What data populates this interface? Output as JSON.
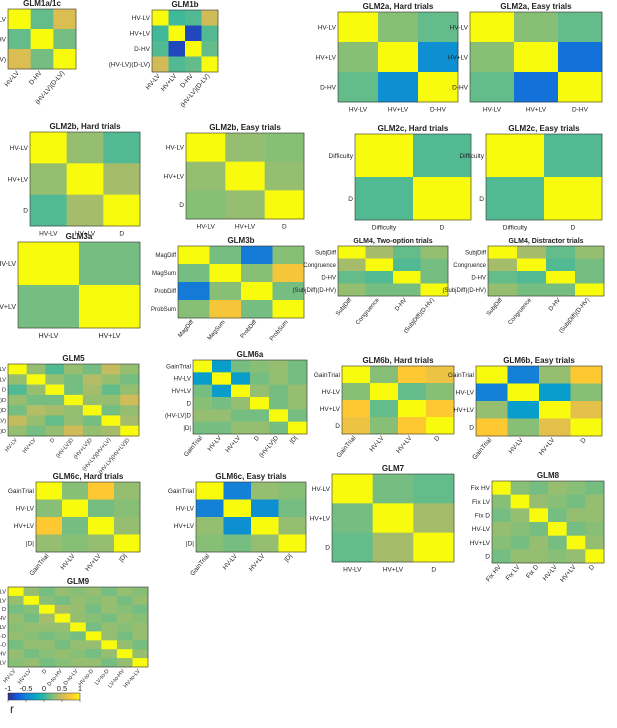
{
  "colormap": {
    "stops": [
      "#352a87",
      "#0f5cdd",
      "#1481d6",
      "#06a4ca",
      "#2eb7a4",
      "#87bf77",
      "#d1bb59",
      "#fec832",
      "#f9fb0e"
    ],
    "ticks": [
      -1,
      -0.5,
      0,
      0.5,
      1
    ],
    "tick_labels": [
      "-1",
      "-0.5",
      "0",
      "0.5",
      "1"
    ],
    "label": "r"
  },
  "chart_data": [
    {
      "type": "heatmap",
      "title": "GLM1a/1c",
      "y_labels": [
        "HV-LV",
        "D-HV",
        "(HV-LV)(D-LV)"
      ],
      "x_labels": [
        "HV-LV",
        "D-HV",
        "(HV-LV)(D-LV)"
      ],
      "values": [
        [
          1,
          0.15,
          0.55
        ],
        [
          0.15,
          1,
          0.2
        ],
        [
          0.55,
          0.2,
          1
        ]
      ]
    },
    {
      "type": "heatmap",
      "title": "GLM1b",
      "y_labels": [
        "HV-LV",
        "HV+LV",
        "D-HV",
        "(HV-LV)(D-LV)"
      ],
      "x_labels": [
        "HV-LV",
        "HV+LV",
        "D-HV",
        "(HV-LV)(D-LV)"
      ],
      "values": [
        [
          1,
          0.05,
          0.1,
          0.5
        ],
        [
          0.05,
          1,
          -0.85,
          0.1
        ],
        [
          0.1,
          -0.85,
          1,
          0.15
        ],
        [
          0.5,
          0.1,
          0.15,
          1
        ]
      ]
    },
    {
      "type": "heatmap",
      "title": "GLM2a, Hard trials",
      "y_labels": [
        "HV-LV",
        "HV+LV",
        "D-HV"
      ],
      "x_labels": [
        "HV-LV",
        "HV+LV",
        "D-HV"
      ],
      "values": [
        [
          1,
          0.25,
          0.15
        ],
        [
          0.25,
          1,
          -0.4
        ],
        [
          0.15,
          -0.4,
          1
        ]
      ]
    },
    {
      "type": "heatmap",
      "title": "GLM2a, Easy trials",
      "y_labels": [
        "HV-LV",
        "HV+LV",
        "D-HV"
      ],
      "x_labels": [
        "HV-LV",
        "HV+LV",
        "D-HV"
      ],
      "values": [
        [
          1,
          0.25,
          0.15
        ],
        [
          0.25,
          1,
          -0.6
        ],
        [
          0.15,
          -0.6,
          1
        ]
      ]
    },
    {
      "type": "heatmap",
      "title": "GLM2b, Hard trials",
      "y_labels": [
        "HV-LV",
        "HV+LV",
        "D"
      ],
      "x_labels": [
        "HV-LV",
        "HV+LV",
        "D"
      ],
      "values": [
        [
          1,
          0.3,
          0.1
        ],
        [
          0.3,
          1,
          0.35
        ],
        [
          0.1,
          0.35,
          1
        ]
      ]
    },
    {
      "type": "heatmap",
      "title": "GLM2b, Easy trials",
      "y_labels": [
        "HV-LV",
        "HV+LV",
        "D"
      ],
      "x_labels": [
        "HV-LV",
        "HV+LV",
        "D"
      ],
      "values": [
        [
          1,
          0.3,
          0.25
        ],
        [
          0.3,
          1,
          0.3
        ],
        [
          0.25,
          0.3,
          1
        ]
      ]
    },
    {
      "type": "heatmap",
      "title": "GLM2c, Hard trials",
      "y_labels": [
        "Difficulty",
        "D"
      ],
      "x_labels": [
        "Difficulty",
        "D"
      ],
      "values": [
        [
          1,
          0.1
        ],
        [
          0.1,
          1
        ]
      ]
    },
    {
      "type": "heatmap",
      "title": "GLM2c, Easy trials",
      "y_labels": [
        "Difficulty",
        "D"
      ],
      "x_labels": [
        "Difficulty",
        "D"
      ],
      "values": [
        [
          1,
          0.1
        ],
        [
          0.1,
          1
        ]
      ]
    },
    {
      "type": "heatmap",
      "title": "GLM3a",
      "y_labels": [
        "HV-LV",
        "HV+LV"
      ],
      "x_labels": [
        "HV-LV",
        "HV+LV"
      ],
      "values": [
        [
          1,
          0.2
        ],
        [
          0.2,
          1
        ]
      ]
    },
    {
      "type": "heatmap",
      "title": "GLM3b",
      "y_labels": [
        "MagDiff",
        "MagSum",
        "ProbDiff",
        "ProbSum"
      ],
      "x_labels": [
        "MagDiff",
        "MagSum",
        "ProbDiff",
        "ProbSum"
      ],
      "values": [
        [
          1,
          0.2,
          -0.55,
          0.25
        ],
        [
          0.2,
          1,
          0.25,
          0.7
        ],
        [
          -0.55,
          0.25,
          1,
          0.2
        ],
        [
          0.25,
          0.7,
          0.2,
          1
        ]
      ]
    },
    {
      "type": "heatmap",
      "title": "GLM4, Two-option trials",
      "y_labels": [
        "SubjDiff",
        "Congruence",
        "D-HV",
        "(SubjDiff)(D-HV)"
      ],
      "x_labels": [
        "SubjDiff",
        "Congruence",
        "D-HV",
        "(SubjDiff)(D-HV)"
      ],
      "values": [
        [
          1,
          0.35,
          0.15,
          0.3
        ],
        [
          0.35,
          1,
          0.1,
          0.2
        ],
        [
          0.15,
          0.1,
          1,
          0.2
        ],
        [
          0.3,
          0.2,
          0.2,
          1
        ]
      ]
    },
    {
      "type": "heatmap",
      "title": "GLM4, Distractor trials",
      "y_labels": [
        "SubjDiff",
        "Congruence",
        "D-HV",
        "(SubjDiff)(D-HV)"
      ],
      "x_labels": [
        "SubjDiff",
        "Congruence",
        "D-HV",
        "(SubjDiff)(D-HV)"
      ],
      "values": [
        [
          1,
          0.35,
          0.15,
          0.3
        ],
        [
          0.35,
          1,
          0.1,
          0.2
        ],
        [
          0.15,
          0.1,
          1,
          0.2
        ],
        [
          0.3,
          0.2,
          0.2,
          1
        ]
      ]
    },
    {
      "type": "heatmap",
      "title": "GLM5",
      "y_labels": [
        "HV-LV",
        "HV+LV",
        "D",
        "(HV-LV)D",
        "(HV+LV)D",
        "(HV-LV)(HV+LV)",
        "(HV-LV)(HV+LV)D"
      ],
      "x_labels": [
        "HV-LV",
        "HV+LV",
        "D",
        "(HV-LV)D",
        "(HV+LV)D",
        "(HV-LV)(HV+LV)",
        "(HV-LV)(HV+LV)D"
      ],
      "values": [
        [
          1,
          0.3,
          0.1,
          0.3,
          0.2,
          0.45,
          0.3
        ],
        [
          0.3,
          1,
          0.3,
          0.2,
          0.4,
          0.3,
          0.2
        ],
        [
          0.1,
          0.3,
          1,
          0.2,
          0.35,
          0.15,
          0.3
        ],
        [
          0.3,
          0.2,
          0.2,
          1,
          0.3,
          0.3,
          0.5
        ],
        [
          0.2,
          0.4,
          0.35,
          0.3,
          1,
          0.2,
          0.3
        ],
        [
          0.45,
          0.3,
          0.15,
          0.3,
          0.2,
          1,
          0.35
        ],
        [
          0.3,
          0.2,
          0.3,
          0.5,
          0.3,
          0.35,
          1
        ]
      ]
    },
    {
      "type": "heatmap",
      "title": "GLM6a",
      "y_labels": [
        "GainTrial",
        "HV-LV",
        "HV+LV",
        "D",
        "(HV-LV)D",
        "|D|"
      ],
      "x_labels": [
        "GainTrial",
        "HV-LV",
        "HV+LV",
        "D",
        "(HV-LV)D",
        "|D|"
      ],
      "values": [
        [
          1,
          -0.3,
          0.2,
          0.25,
          0.3,
          0.2
        ],
        [
          -0.3,
          1,
          -0.3,
          0.2,
          0.3,
          0.2
        ],
        [
          0.2,
          -0.3,
          1,
          0.3,
          0.2,
          0.3
        ],
        [
          0.25,
          0.2,
          0.3,
          1,
          0.2,
          0.3
        ],
        [
          0.3,
          0.3,
          0.2,
          0.2,
          1,
          0.2
        ],
        [
          0.2,
          0.2,
          0.3,
          0.3,
          0.2,
          1
        ]
      ]
    },
    {
      "type": "heatmap",
      "title": "GLM6b, Hard trials",
      "y_labels": [
        "GainTrial",
        "HV-LV",
        "HV+LV",
        "D"
      ],
      "x_labels": [
        "GainTrial",
        "HV-LV",
        "HV+LV",
        "D"
      ],
      "values": [
        [
          1,
          0.25,
          0.75,
          0.65
        ],
        [
          0.25,
          1,
          0.15,
          0.25
        ],
        [
          0.75,
          0.15,
          1,
          0.75
        ],
        [
          0.65,
          0.25,
          0.75,
          1
        ]
      ]
    },
    {
      "type": "heatmap",
      "title": "GLM6b, Easy trials",
      "y_labels": [
        "GainTrial",
        "HV-LV",
        "HV+LV",
        "D"
      ],
      "x_labels": [
        "GainTrial",
        "HV-LV",
        "HV+LV",
        "D"
      ],
      "values": [
        [
          1,
          -0.5,
          0.3,
          0.75
        ],
        [
          -0.5,
          1,
          -0.3,
          0.25
        ],
        [
          0.3,
          -0.3,
          1,
          0.6
        ],
        [
          0.75,
          0.25,
          0.6,
          1
        ]
      ]
    },
    {
      "type": "heatmap",
      "title": "GLM6c, Hard trials",
      "y_labels": [
        "GainTrial",
        "HV-LV",
        "HV+LV",
        "|D|"
      ],
      "x_labels": [
        "GainTrial",
        "HV-LV",
        "HV+LV",
        "|D|"
      ],
      "values": [
        [
          1,
          0.25,
          0.75,
          0.3
        ],
        [
          0.25,
          1,
          0.2,
          0.25
        ],
        [
          0.75,
          0.2,
          1,
          0.3
        ],
        [
          0.3,
          0.25,
          0.3,
          1
        ]
      ]
    },
    {
      "type": "heatmap",
      "title": "GLM6c, Easy trials",
      "y_labels": [
        "GainTrial",
        "HV-LV",
        "HV+LV",
        "|D|"
      ],
      "x_labels": [
        "GainTrial",
        "HV-LV",
        "HV+LV",
        "|D|"
      ],
      "values": [
        [
          1,
          -0.5,
          0.3,
          0.25
        ],
        [
          -0.5,
          1,
          -0.4,
          0.2
        ],
        [
          0.3,
          -0.4,
          1,
          0.3
        ],
        [
          0.25,
          0.2,
          0.3,
          1
        ]
      ]
    },
    {
      "type": "heatmap",
      "title": "GLM7",
      "y_labels": [
        "HV-LV",
        "HV+LV",
        "D"
      ],
      "x_labels": [
        "HV-LV",
        "HV+LV",
        "D"
      ],
      "values": [
        [
          1,
          0.2,
          0.15
        ],
        [
          0.2,
          1,
          0.35
        ],
        [
          0.15,
          0.35,
          1
        ]
      ]
    },
    {
      "type": "heatmap",
      "title": "GLM8",
      "y_labels": [
        "Fix HV",
        "Fix LV",
        "Fix D",
        "HV-LV",
        "HV+LV",
        "D"
      ],
      "x_labels": [
        "Fix HV",
        "Fix LV",
        "Fix D",
        "HV-LV",
        "HV+LV",
        "D"
      ],
      "values": [
        [
          1,
          0.25,
          0.2,
          0.3,
          0.25,
          0.2
        ],
        [
          0.25,
          1,
          0.3,
          0.25,
          0.2,
          0.3
        ],
        [
          0.2,
          0.3,
          1,
          0.2,
          0.3,
          0.3
        ],
        [
          0.3,
          0.25,
          0.2,
          1,
          0.2,
          0.25
        ],
        [
          0.25,
          0.2,
          0.3,
          0.2,
          1,
          0.3
        ],
        [
          0.2,
          0.3,
          0.3,
          0.25,
          0.3,
          1
        ]
      ]
    },
    {
      "type": "heatmap",
      "title": "GLM9",
      "y_labels": [
        "HV-LV",
        "HV+LV",
        "D",
        "D-to-HV",
        "D-to-LV",
        "HV-to-D",
        "LV-to-D",
        "LV-to-HV",
        "HV-to-LV"
      ],
      "x_labels": [
        "HV-LV",
        "HV+LV",
        "D",
        "D-to-HV",
        "D-to-LV",
        "HV-to-D",
        "LV-to-D",
        "LV-to-HV",
        "HV-to-LV"
      ],
      "values": [
        [
          1,
          0.3,
          0.2,
          0.3,
          0.25,
          0.3,
          0.2,
          0.3,
          0.25
        ],
        [
          0.3,
          1,
          0.25,
          0.2,
          0.3,
          0.25,
          0.3,
          0.2,
          0.3
        ],
        [
          0.2,
          0.25,
          1,
          0.35,
          0.3,
          0.2,
          0.3,
          0.25,
          0.2
        ],
        [
          0.3,
          0.2,
          0.35,
          1,
          0.3,
          0.25,
          0.2,
          0.3,
          0.25
        ],
        [
          0.25,
          0.3,
          0.3,
          0.3,
          1,
          0.2,
          0.3,
          0.25,
          0.3
        ],
        [
          0.3,
          0.25,
          0.2,
          0.25,
          0.2,
          1,
          0.3,
          0.2,
          0.3
        ],
        [
          0.2,
          0.3,
          0.3,
          0.2,
          0.3,
          0.3,
          1,
          0.3,
          0.2
        ],
        [
          0.3,
          0.2,
          0.25,
          0.3,
          0.25,
          0.2,
          0.3,
          1,
          0.3
        ],
        [
          0.25,
          0.3,
          0.2,
          0.25,
          0.3,
          0.3,
          0.2,
          0.3,
          1
        ]
      ]
    }
  ]
}
